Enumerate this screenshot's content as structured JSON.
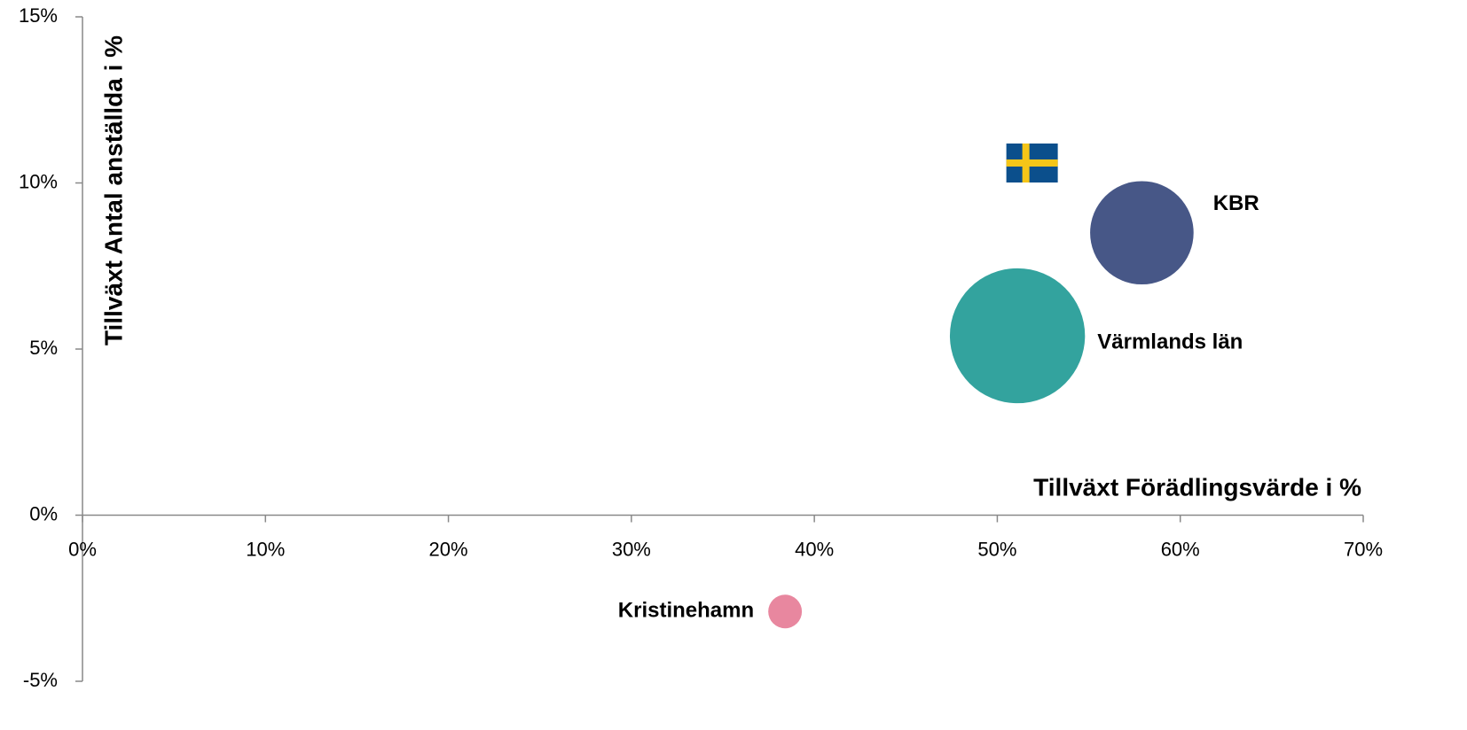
{
  "chart_data": {
    "type": "bubble",
    "x_label": "Tillväxt Förädlingsvärde i %",
    "y_label": "Tillväxt Antal anställda i %",
    "labels": [
      null,
      "KBR",
      "Värmlands län",
      "Kristinehamn"
    ],
    "x": [
      51.9,
      57.9,
      51.1,
      38.4
    ],
    "y": [
      10.6,
      8.5,
      5.4,
      -2.9
    ],
    "sizes": [
      null,
      3400,
      5800,
      360
    ],
    "markers": [
      "flag",
      "circle",
      "circle",
      "circle"
    ],
    "colors": [
      null,
      "#475787",
      "#33a39e",
      "#e8879f"
    ],
    "xlim": [
      0,
      70
    ],
    "xticks": [
      {
        "value": 0,
        "label": "0%"
      },
      {
        "value": 10,
        "label": "10%"
      },
      {
        "value": 20,
        "label": "20%"
      },
      {
        "value": 30,
        "label": "30%"
      },
      {
        "value": 40,
        "label": "40%"
      },
      {
        "value": 50,
        "label": "50%"
      },
      {
        "value": 60,
        "label": "60%"
      },
      {
        "value": 70,
        "label": "70%"
      }
    ],
    "ylim": [
      -5,
      15
    ],
    "yticks": [
      {
        "value": -5,
        "label": "-5%"
      },
      {
        "value": 0,
        "label": "0%"
      },
      {
        "value": 5,
        "label": "5%"
      },
      {
        "value": 10,
        "label": "10%"
      },
      {
        "value": 15,
        "label": "15%"
      }
    ]
  }
}
